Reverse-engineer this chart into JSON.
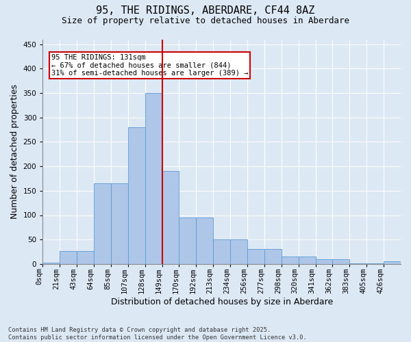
{
  "title": "95, THE RIDINGS, ABERDARE, CF44 8AZ",
  "subtitle": "Size of property relative to detached houses in Aberdare",
  "xlabel": "Distribution of detached houses by size in Aberdare",
  "ylabel": "Number of detached properties",
  "footnote": "Contains HM Land Registry data © Crown copyright and database right 2025.\nContains public sector information licensed under the Open Government Licence v3.0.",
  "bin_labels": [
    "0sqm",
    "21sqm",
    "43sqm",
    "64sqm",
    "85sqm",
    "107sqm",
    "128sqm",
    "149sqm",
    "170sqm",
    "192sqm",
    "213sqm",
    "234sqm",
    "256sqm",
    "277sqm",
    "298sqm",
    "320sqm",
    "341sqm",
    "362sqm",
    "383sqm",
    "405sqm",
    "426sqm"
  ],
  "bar_heights": [
    2,
    27,
    27,
    165,
    165,
    280,
    350,
    190,
    95,
    95,
    50,
    50,
    30,
    30,
    15,
    15,
    10,
    10,
    1,
    1,
    5
  ],
  "bar_color": "#aec6e8",
  "bar_edge_color": "#5b9bd5",
  "vline_bin": 7,
  "vline_label": "131sqm",
  "vline_color": "#cc0000",
  "annotation_text": "95 THE RIDINGS: 131sqm\n← 67% of detached houses are smaller (844)\n31% of semi-detached houses are larger (389) →",
  "annotation_box_color": "#ffffff",
  "annotation_box_edge": "#cc0000",
  "ylim": [
    0,
    460
  ],
  "yticks": [
    0,
    50,
    100,
    150,
    200,
    250,
    300,
    350,
    400,
    450
  ],
  "bg_color": "#dde8f5",
  "plot_bg_color": "#dde8f5",
  "title_fontsize": 11,
  "subtitle_fontsize": 9,
  "axis_label_fontsize": 9,
  "tick_fontsize": 7.5,
  "annotation_fontsize": 7.5
}
